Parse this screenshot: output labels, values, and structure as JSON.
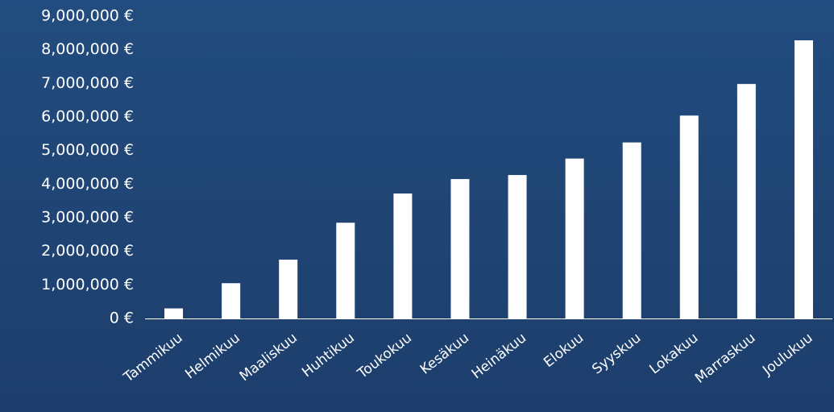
{
  "chart_data": {
    "type": "bar",
    "categories": [
      "Tammikuu",
      "Helmikuu",
      "Maaliskuu",
      "Huhtikuu",
      "Toukokuu",
      "Kesäkuu",
      "Heinäkuu",
      "Elokuu",
      "Syyskuu",
      "Lokakuu",
      "Marraskuu",
      "Joulukuu"
    ],
    "values": [
      300000,
      1050000,
      1750000,
      2850000,
      3720000,
      4150000,
      4270000,
      4760000,
      5240000,
      6040000,
      6980000,
      8280000
    ],
    "ylim": [
      0,
      9000000
    ],
    "yticks": [
      0,
      1000000,
      2000000,
      3000000,
      4000000,
      5000000,
      6000000,
      7000000,
      8000000,
      9000000
    ],
    "ytick_labels": [
      "0 €",
      "1,000,000 €",
      "2,000,000 €",
      "3,000,000 €",
      "4,000,000 €",
      "5,000,000 €",
      "6,000,000 €",
      "7,000,000 €",
      "8,000,000 €",
      "9,000,000 €"
    ],
    "title": "",
    "xlabel": "",
    "ylabel": "",
    "grid": false,
    "legend": "none",
    "colors": {
      "background": "#214a7c",
      "bar": "#ffffff",
      "axis": "#ffffff",
      "text": "#ffffff"
    }
  }
}
